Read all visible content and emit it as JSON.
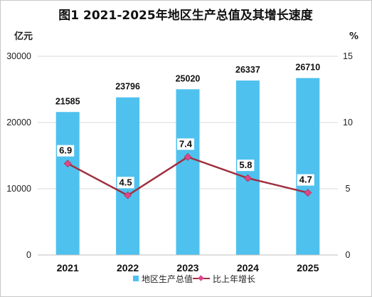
{
  "chart_data": {
    "type": "bar",
    "title": "图1 2021-2025年地区生产总值及其增长速度",
    "left_unit": "亿元",
    "right_unit": "%",
    "categories": [
      "2021",
      "2022",
      "2023",
      "2024",
      "2025"
    ],
    "series": [
      {
        "name": "地区生产总值",
        "type": "bar",
        "axis": "left",
        "values": [
          21585,
          23796,
          25020,
          26337,
          26710
        ]
      },
      {
        "name": "比上年增长",
        "type": "line",
        "axis": "right",
        "values": [
          6.9,
          4.5,
          7.4,
          5.8,
          4.7
        ]
      }
    ],
    "left_axis": {
      "ylim": [
        0,
        30000
      ],
      "ticks": [
        "0",
        "10000",
        "20000",
        "30000"
      ]
    },
    "right_axis": {
      "ylim": [
        0,
        15
      ],
      "ticks": [
        "0",
        "5",
        "10",
        "15"
      ]
    },
    "grid": true,
    "legend_position": "bottom",
    "colors": {
      "bar": "#4fc1ee",
      "line": "#a03040",
      "marker": "#e0458c",
      "grid": "#d9d9d9"
    }
  }
}
